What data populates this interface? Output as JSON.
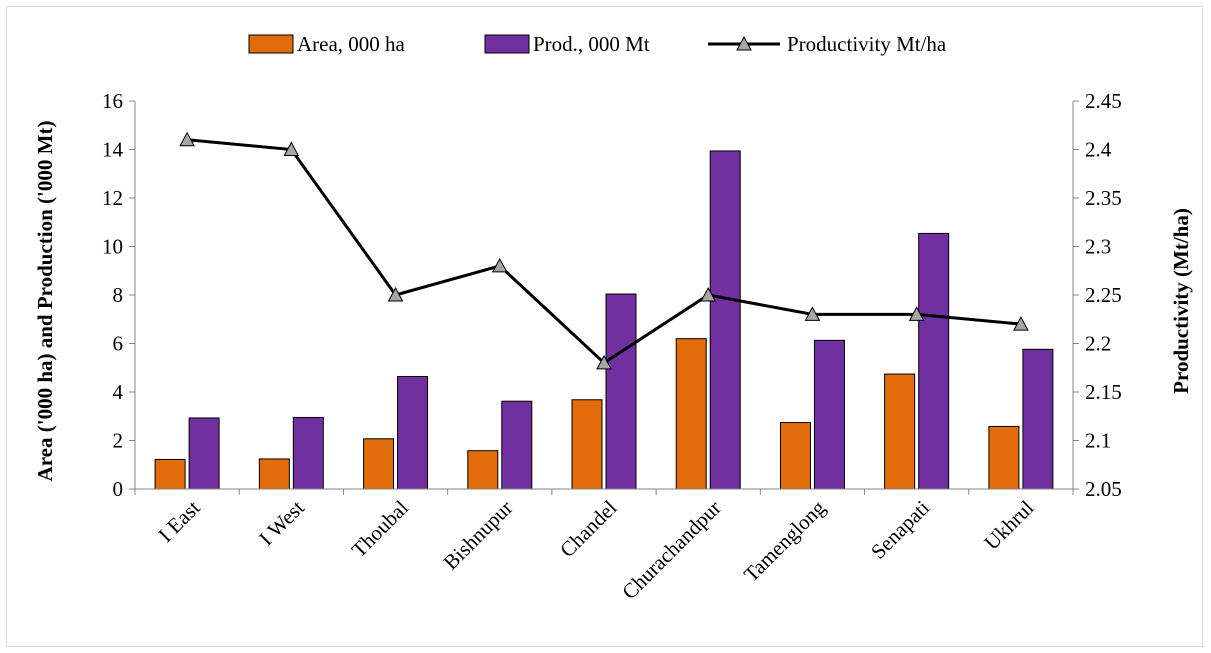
{
  "chart_data": {
    "type": "bar",
    "categories": [
      "I East",
      "I West",
      "Thoubal",
      "Bishnupur",
      "Chandel",
      "Churachandpur",
      "Tamenglong",
      "Senapati",
      "Ukhrul"
    ],
    "series": [
      {
        "name": "Area, 000 ha",
        "type": "bar",
        "axis": "left",
        "color": "#e36c0a",
        "values": [
          1.22,
          1.24,
          2.07,
          1.58,
          3.68,
          6.2,
          2.74,
          4.74,
          2.58
        ]
      },
      {
        "name": "Prod., 000 Mt",
        "type": "bar",
        "axis": "left",
        "color": "#7030a0",
        "values": [
          2.93,
          2.95,
          4.64,
          3.62,
          8.04,
          13.94,
          6.13,
          10.54,
          5.76
        ]
      },
      {
        "name": "Productivity Mt/ha",
        "type": "line",
        "axis": "right",
        "color": "#000000",
        "marker": "triangle",
        "marker_color": "#a6a6a6",
        "values": [
          2.41,
          2.4,
          2.25,
          2.28,
          2.18,
          2.25,
          2.23,
          2.23,
          2.22
        ]
      }
    ],
    "ylabel": "Area ('000 ha) and Production ('000 Mt)",
    "y2label": "Productivity (Mt/ha)",
    "ylim": [
      0,
      16
    ],
    "yticks": [
      0,
      2,
      4,
      6,
      8,
      10,
      12,
      14,
      16
    ],
    "y2lim": [
      2.05,
      2.45
    ],
    "y2ticks": [
      "2.05",
      "2.1",
      "2.15",
      "2.2",
      "2.25",
      "2.3",
      "2.35",
      "2.4",
      "2.45"
    ],
    "grid": false,
    "legend": "top-center"
  }
}
